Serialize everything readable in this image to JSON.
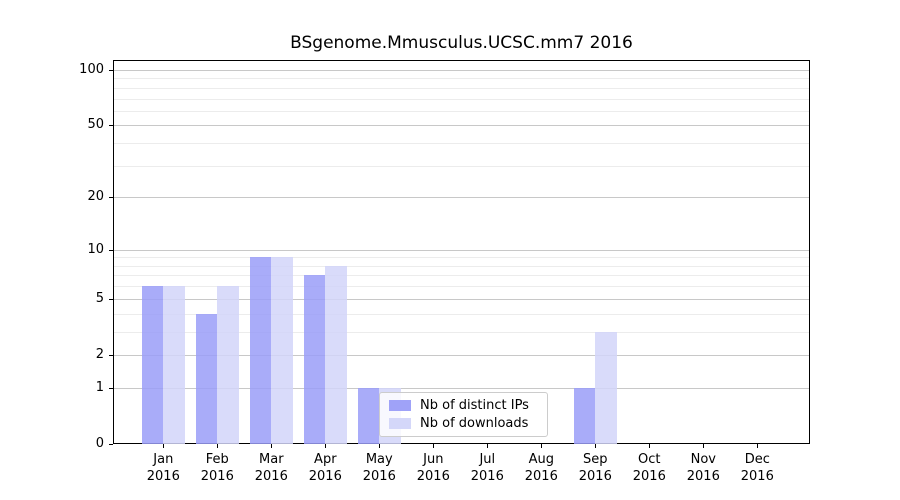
{
  "chart_data": {
    "type": "bar",
    "title": "BSgenome.Mmusculus.UCSC.mm7 2016",
    "categories": [
      "Jan",
      "Feb",
      "Mar",
      "Apr",
      "May",
      "Jun",
      "Jul",
      "Aug",
      "Sep",
      "Oct",
      "Nov",
      "Dec"
    ],
    "x_sub_label": "2016",
    "series": [
      {
        "name": "Nb of distinct IPs",
        "color": "#a9acf9",
        "values": [
          6,
          4,
          9,
          7,
          1,
          0,
          0,
          0,
          1,
          0,
          0,
          0
        ]
      },
      {
        "name": "Nb of downloads",
        "color": "#d9dbfa",
        "values": [
          6,
          6,
          9,
          8,
          1,
          0,
          0,
          0,
          3,
          0,
          0,
          0
        ]
      }
    ],
    "ylabel": "",
    "xlabel": "",
    "ylim": [
      0,
      100
    ],
    "y_scale": "log1p",
    "y_ticks": [
      0,
      1,
      2,
      5,
      10,
      20,
      50,
      100
    ],
    "y_minor_ticks": [
      3,
      4,
      6,
      7,
      8,
      9,
      30,
      40,
      60,
      70,
      80,
      90
    ],
    "grid": "on",
    "legend_position": "lower center",
    "legend": [
      "Nb of distinct IPs",
      "Nb of downloads"
    ]
  }
}
